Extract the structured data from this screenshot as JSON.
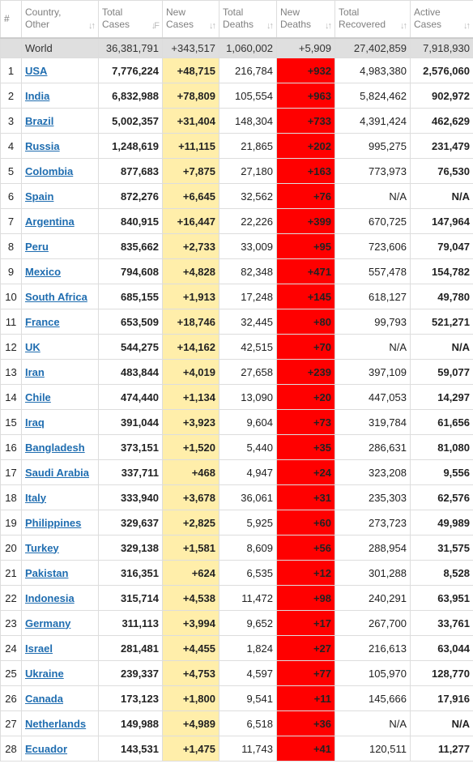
{
  "headers": [
    {
      "label": "#",
      "sort": ""
    },
    {
      "label": "Country, Other",
      "sort": "↓↑"
    },
    {
      "label": "Total Cases",
      "sort": "↓F"
    },
    {
      "label": "New Cases",
      "sort": "↓↑"
    },
    {
      "label": "Total Deaths",
      "sort": "↓↑"
    },
    {
      "label": "New Deaths",
      "sort": "↓↑"
    },
    {
      "label": "Total Recovered",
      "sort": "↓↑"
    },
    {
      "label": "Active Cases",
      "sort": "↓↑"
    }
  ],
  "world": {
    "name": "World",
    "cases": "36,381,791",
    "new_cases": "+343,517",
    "deaths": "1,060,002",
    "new_deaths": "+5,909",
    "recovered": "27,402,859",
    "active": "7,918,930"
  },
  "rows": [
    {
      "n": "1",
      "country": "USA",
      "cases": "7,776,224",
      "new_cases": "+48,715",
      "deaths": "216,784",
      "new_deaths": "+932",
      "recovered": "4,983,380",
      "active": "2,576,060"
    },
    {
      "n": "2",
      "country": "India",
      "cases": "6,832,988",
      "new_cases": "+78,809",
      "deaths": "105,554",
      "new_deaths": "+963",
      "recovered": "5,824,462",
      "active": "902,972"
    },
    {
      "n": "3",
      "country": "Brazil",
      "cases": "5,002,357",
      "new_cases": "+31,404",
      "deaths": "148,304",
      "new_deaths": "+733",
      "recovered": "4,391,424",
      "active": "462,629"
    },
    {
      "n": "4",
      "country": "Russia",
      "cases": "1,248,619",
      "new_cases": "+11,115",
      "deaths": "21,865",
      "new_deaths": "+202",
      "recovered": "995,275",
      "active": "231,479"
    },
    {
      "n": "5",
      "country": "Colombia",
      "cases": "877,683",
      "new_cases": "+7,875",
      "deaths": "27,180",
      "new_deaths": "+163",
      "recovered": "773,973",
      "active": "76,530"
    },
    {
      "n": "6",
      "country": "Spain",
      "cases": "872,276",
      "new_cases": "+6,645",
      "deaths": "32,562",
      "new_deaths": "+76",
      "recovered": "N/A",
      "active": "N/A"
    },
    {
      "n": "7",
      "country": "Argentina",
      "cases": "840,915",
      "new_cases": "+16,447",
      "deaths": "22,226",
      "new_deaths": "+399",
      "recovered": "670,725",
      "active": "147,964"
    },
    {
      "n": "8",
      "country": "Peru",
      "cases": "835,662",
      "new_cases": "+2,733",
      "deaths": "33,009",
      "new_deaths": "+95",
      "recovered": "723,606",
      "active": "79,047"
    },
    {
      "n": "9",
      "country": "Mexico",
      "cases": "794,608",
      "new_cases": "+4,828",
      "deaths": "82,348",
      "new_deaths": "+471",
      "recovered": "557,478",
      "active": "154,782"
    },
    {
      "n": "10",
      "country": "South Africa",
      "cases": "685,155",
      "new_cases": "+1,913",
      "deaths": "17,248",
      "new_deaths": "+145",
      "recovered": "618,127",
      "active": "49,780"
    },
    {
      "n": "11",
      "country": "France",
      "cases": "653,509",
      "new_cases": "+18,746",
      "deaths": "32,445",
      "new_deaths": "+80",
      "recovered": "99,793",
      "active": "521,271"
    },
    {
      "n": "12",
      "country": "UK",
      "cases": "544,275",
      "new_cases": "+14,162",
      "deaths": "42,515",
      "new_deaths": "+70",
      "recovered": "N/A",
      "active": "N/A"
    },
    {
      "n": "13",
      "country": "Iran",
      "cases": "483,844",
      "new_cases": "+4,019",
      "deaths": "27,658",
      "new_deaths": "+239",
      "recovered": "397,109",
      "active": "59,077"
    },
    {
      "n": "14",
      "country": "Chile",
      "cases": "474,440",
      "new_cases": "+1,134",
      "deaths": "13,090",
      "new_deaths": "+20",
      "recovered": "447,053",
      "active": "14,297"
    },
    {
      "n": "15",
      "country": "Iraq",
      "cases": "391,044",
      "new_cases": "+3,923",
      "deaths": "9,604",
      "new_deaths": "+73",
      "recovered": "319,784",
      "active": "61,656"
    },
    {
      "n": "16",
      "country": "Bangladesh",
      "cases": "373,151",
      "new_cases": "+1,520",
      "deaths": "5,440",
      "new_deaths": "+35",
      "recovered": "286,631",
      "active": "81,080"
    },
    {
      "n": "17",
      "country": "Saudi Arabia",
      "cases": "337,711",
      "new_cases": "+468",
      "deaths": "4,947",
      "new_deaths": "+24",
      "recovered": "323,208",
      "active": "9,556"
    },
    {
      "n": "18",
      "country": "Italy",
      "cases": "333,940",
      "new_cases": "+3,678",
      "deaths": "36,061",
      "new_deaths": "+31",
      "recovered": "235,303",
      "active": "62,576"
    },
    {
      "n": "19",
      "country": "Philippines",
      "cases": "329,637",
      "new_cases": "+2,825",
      "deaths": "5,925",
      "new_deaths": "+60",
      "recovered": "273,723",
      "active": "49,989"
    },
    {
      "n": "20",
      "country": "Turkey",
      "cases": "329,138",
      "new_cases": "+1,581",
      "deaths": "8,609",
      "new_deaths": "+56",
      "recovered": "288,954",
      "active": "31,575"
    },
    {
      "n": "21",
      "country": "Pakistan",
      "cases": "316,351",
      "new_cases": "+624",
      "deaths": "6,535",
      "new_deaths": "+12",
      "recovered": "301,288",
      "active": "8,528"
    },
    {
      "n": "22",
      "country": "Indonesia",
      "cases": "315,714",
      "new_cases": "+4,538",
      "deaths": "11,472",
      "new_deaths": "+98",
      "recovered": "240,291",
      "active": "63,951"
    },
    {
      "n": "23",
      "country": "Germany",
      "cases": "311,113",
      "new_cases": "+3,994",
      "deaths": "9,652",
      "new_deaths": "+17",
      "recovered": "267,700",
      "active": "33,761"
    },
    {
      "n": "24",
      "country": "Israel",
      "cases": "281,481",
      "new_cases": "+4,455",
      "deaths": "1,824",
      "new_deaths": "+27",
      "recovered": "216,613",
      "active": "63,044"
    },
    {
      "n": "25",
      "country": "Ukraine",
      "cases": "239,337",
      "new_cases": "+4,753",
      "deaths": "4,597",
      "new_deaths": "+77",
      "recovered": "105,970",
      "active": "128,770"
    },
    {
      "n": "26",
      "country": "Canada",
      "cases": "173,123",
      "new_cases": "+1,800",
      "deaths": "9,541",
      "new_deaths": "+11",
      "recovered": "145,666",
      "active": "17,916"
    },
    {
      "n": "27",
      "country": "Netherlands",
      "cases": "149,988",
      "new_cases": "+4,989",
      "deaths": "6,518",
      "new_deaths": "+36",
      "recovered": "N/A",
      "active": "N/A"
    },
    {
      "n": "28",
      "country": "Ecuador",
      "cases": "143,531",
      "new_cases": "+1,475",
      "deaths": "11,743",
      "new_deaths": "+41",
      "recovered": "120,511",
      "active": "11,277"
    }
  ],
  "colors": {
    "new_cases_bg": "#ffeeaa",
    "new_deaths_bg": "#ff0000",
    "link": "#1f6db0",
    "world_bg": "#dfdfdf"
  }
}
